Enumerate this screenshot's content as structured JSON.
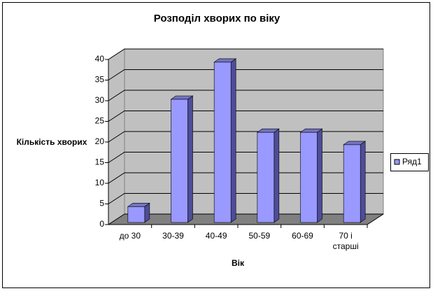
{
  "chart_data": {
    "type": "bar",
    "title": "Розподіл хворих по віку",
    "x_label": "Вік",
    "y_label": "Кількість хворих",
    "categories": [
      "до 30",
      "30-39",
      "40-49",
      "50-59",
      "60-69",
      "70 і старші"
    ],
    "series": [
      {
        "name": "Ряд1",
        "color": "#9999ff",
        "values": [
          4,
          30,
          39,
          22,
          22,
          19
        ]
      }
    ],
    "ylim": [
      0,
      40
    ],
    "yticks": [
      0,
      5,
      10,
      15,
      20,
      25,
      30,
      35,
      40
    ],
    "grid": true,
    "legend": "right"
  }
}
